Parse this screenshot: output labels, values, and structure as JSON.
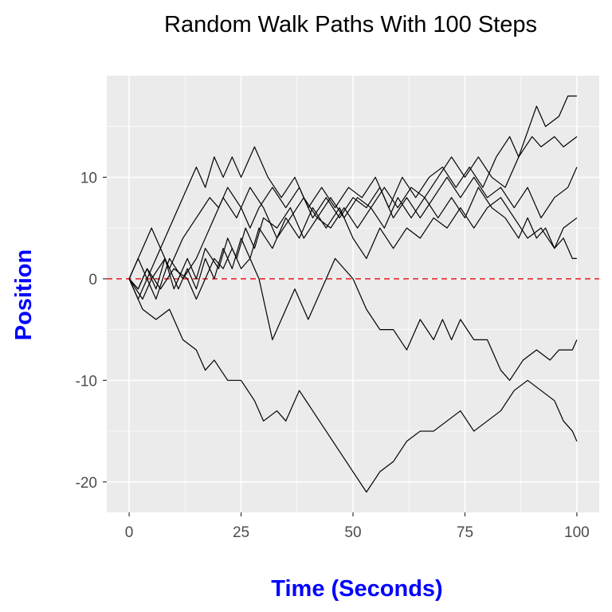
{
  "chart_data": {
    "type": "line",
    "title": "Random Walk Paths With 100 Steps",
    "xlabel": "Time (Seconds)",
    "ylabel": "Position",
    "xlim": [
      -5,
      105
    ],
    "ylim": [
      -23,
      20
    ],
    "x_ticks": [
      0,
      25,
      50,
      75,
      100
    ],
    "y_ticks": [
      -20,
      -10,
      0,
      10
    ],
    "grid": true,
    "legend": "none",
    "reference_line": {
      "y": 0,
      "style": "dashed",
      "color": "#e41a1c"
    },
    "colors": {
      "panel": "#ebebeb",
      "grid": "#ffffff",
      "line": "#000000",
      "axis_title": "#0000ff",
      "tick_label": "#4d4d4d"
    },
    "series": [
      {
        "points": [
          [
            0,
            0
          ],
          [
            3,
            3
          ],
          [
            5,
            5
          ],
          [
            7,
            3
          ],
          [
            10,
            6
          ],
          [
            15,
            11
          ],
          [
            17,
            9
          ],
          [
            19,
            12
          ],
          [
            21,
            10
          ],
          [
            23,
            12
          ],
          [
            25,
            10
          ],
          [
            28,
            13
          ],
          [
            31,
            10
          ],
          [
            34,
            8
          ],
          [
            37,
            10
          ],
          [
            40,
            7
          ],
          [
            43,
            9
          ],
          [
            46,
            7
          ],
          [
            49,
            9
          ],
          [
            52,
            8
          ],
          [
            55,
            10
          ],
          [
            58,
            7
          ],
          [
            61,
            10
          ],
          [
            64,
            8
          ],
          [
            67,
            10
          ],
          [
            70,
            11
          ],
          [
            73,
            9
          ],
          [
            76,
            11
          ],
          [
            79,
            9
          ],
          [
            82,
            12
          ],
          [
            85,
            14
          ],
          [
            87,
            12
          ],
          [
            91,
            17
          ],
          [
            93,
            15
          ],
          [
            96,
            16
          ],
          [
            98,
            18
          ],
          [
            100,
            18
          ]
        ]
      },
      {
        "points": [
          [
            0,
            0
          ],
          [
            2,
            -2
          ],
          [
            4,
            0
          ],
          [
            6,
            -2
          ],
          [
            9,
            2
          ],
          [
            12,
            0
          ],
          [
            15,
            2
          ],
          [
            18,
            5
          ],
          [
            21,
            8
          ],
          [
            24,
            6
          ],
          [
            27,
            9
          ],
          [
            30,
            7
          ],
          [
            33,
            4
          ],
          [
            36,
            6
          ],
          [
            39,
            8
          ],
          [
            42,
            6
          ],
          [
            45,
            8
          ],
          [
            48,
            6
          ],
          [
            51,
            8
          ],
          [
            54,
            7
          ],
          [
            57,
            9
          ],
          [
            60,
            7
          ],
          [
            63,
            9
          ],
          [
            66,
            8
          ],
          [
            69,
            10
          ],
          [
            72,
            12
          ],
          [
            75,
            10
          ],
          [
            78,
            12
          ],
          [
            81,
            10
          ],
          [
            84,
            9
          ],
          [
            87,
            12
          ],
          [
            90,
            14
          ],
          [
            92,
            13
          ],
          [
            95,
            14
          ],
          [
            97,
            13
          ],
          [
            100,
            14
          ]
        ]
      },
      {
        "points": [
          [
            0,
            0
          ],
          [
            2,
            2
          ],
          [
            4,
            0
          ],
          [
            7,
            3
          ],
          [
            9,
            1
          ],
          [
            12,
            4
          ],
          [
            15,
            6
          ],
          [
            18,
            8
          ],
          [
            20,
            7
          ],
          [
            22,
            9
          ],
          [
            25,
            7
          ],
          [
            27,
            5
          ],
          [
            29,
            7
          ],
          [
            32,
            9
          ],
          [
            35,
            7
          ],
          [
            38,
            9
          ],
          [
            41,
            6
          ],
          [
            44,
            8
          ],
          [
            47,
            6
          ],
          [
            50,
            8
          ],
          [
            53,
            7
          ],
          [
            56,
            9
          ],
          [
            59,
            6
          ],
          [
            62,
            8
          ],
          [
            65,
            6
          ],
          [
            68,
            8
          ],
          [
            71,
            10
          ],
          [
            74,
            8
          ],
          [
            77,
            10
          ],
          [
            80,
            8
          ],
          [
            83,
            9
          ],
          [
            86,
            7
          ],
          [
            89,
            9
          ],
          [
            92,
            6
          ],
          [
            95,
            8
          ],
          [
            98,
            9
          ],
          [
            100,
            11
          ]
        ]
      },
      {
        "points": [
          [
            0,
            0
          ],
          [
            3,
            -2
          ],
          [
            5,
            0
          ],
          [
            8,
            2
          ],
          [
            10,
            -1
          ],
          [
            13,
            2
          ],
          [
            15,
            0
          ],
          [
            17,
            3
          ],
          [
            20,
            1
          ],
          [
            22,
            4
          ],
          [
            24,
            2
          ],
          [
            26,
            5
          ],
          [
            28,
            3
          ],
          [
            30,
            6
          ],
          [
            33,
            5
          ],
          [
            36,
            7
          ],
          [
            39,
            4
          ],
          [
            42,
            6
          ],
          [
            45,
            5
          ],
          [
            48,
            7
          ],
          [
            51,
            5
          ],
          [
            54,
            7
          ],
          [
            57,
            5
          ],
          [
            60,
            8
          ],
          [
            63,
            6
          ],
          [
            66,
            8
          ],
          [
            69,
            6
          ],
          [
            72,
            8
          ],
          [
            75,
            6
          ],
          [
            78,
            9
          ],
          [
            81,
            7
          ],
          [
            84,
            6
          ],
          [
            87,
            4
          ],
          [
            89,
            6
          ],
          [
            91,
            4
          ],
          [
            93,
            5
          ],
          [
            95,
            3
          ],
          [
            97,
            4
          ],
          [
            99,
            2
          ],
          [
            100,
            2
          ]
        ]
      },
      {
        "points": [
          [
            0,
            0
          ],
          [
            2,
            -1
          ],
          [
            4,
            1
          ],
          [
            6,
            -1
          ],
          [
            8,
            2
          ],
          [
            11,
            -1
          ],
          [
            13,
            1
          ],
          [
            15,
            -1
          ],
          [
            17,
            2
          ],
          [
            19,
            0
          ],
          [
            21,
            3
          ],
          [
            23,
            1
          ],
          [
            25,
            4
          ],
          [
            27,
            2
          ],
          [
            29,
            5
          ],
          [
            32,
            3
          ],
          [
            35,
            6
          ],
          [
            38,
            4
          ],
          [
            41,
            7
          ],
          [
            44,
            5
          ],
          [
            47,
            7
          ],
          [
            50,
            4
          ],
          [
            53,
            2
          ],
          [
            56,
            5
          ],
          [
            59,
            3
          ],
          [
            62,
            5
          ],
          [
            65,
            4
          ],
          [
            68,
            6
          ],
          [
            71,
            5
          ],
          [
            74,
            7
          ],
          [
            77,
            5
          ],
          [
            80,
            7
          ],
          [
            83,
            8
          ],
          [
            86,
            6
          ],
          [
            89,
            4
          ],
          [
            92,
            5
          ],
          [
            95,
            3
          ],
          [
            97,
            5
          ],
          [
            100,
            6
          ]
        ]
      },
      {
        "points": [
          [
            0,
            0
          ],
          [
            2,
            -1
          ],
          [
            4,
            1
          ],
          [
            7,
            -1
          ],
          [
            10,
            1
          ],
          [
            13,
            0
          ],
          [
            15,
            -2
          ],
          [
            17,
            0
          ],
          [
            19,
            2
          ],
          [
            21,
            1
          ],
          [
            23,
            3
          ],
          [
            25,
            1
          ],
          [
            27,
            2
          ],
          [
            29,
            0
          ],
          [
            32,
            -6
          ],
          [
            35,
            -3
          ],
          [
            37,
            -1
          ],
          [
            40,
            -4
          ],
          [
            43,
            -1
          ],
          [
            46,
            2
          ],
          [
            48,
            1
          ],
          [
            50,
            0
          ],
          [
            53,
            -3
          ],
          [
            56,
            -5
          ],
          [
            59,
            -5
          ],
          [
            62,
            -7
          ],
          [
            65,
            -4
          ],
          [
            68,
            -6
          ],
          [
            70,
            -4
          ],
          [
            72,
            -6
          ],
          [
            74,
            -4
          ],
          [
            77,
            -6
          ],
          [
            80,
            -6
          ],
          [
            83,
            -9
          ],
          [
            85,
            -10
          ],
          [
            88,
            -8
          ],
          [
            91,
            -7
          ],
          [
            94,
            -8
          ],
          [
            96,
            -7
          ],
          [
            99,
            -7
          ],
          [
            100,
            -6
          ]
        ]
      },
      {
        "points": [
          [
            0,
            0
          ],
          [
            3,
            -3
          ],
          [
            6,
            -4
          ],
          [
            9,
            -3
          ],
          [
            12,
            -6
          ],
          [
            15,
            -7
          ],
          [
            17,
            -9
          ],
          [
            19,
            -8
          ],
          [
            22,
            -10
          ],
          [
            25,
            -10
          ],
          [
            28,
            -12
          ],
          [
            30,
            -14
          ],
          [
            33,
            -13
          ],
          [
            35,
            -14
          ],
          [
            38,
            -11
          ],
          [
            41,
            -13
          ],
          [
            44,
            -15
          ],
          [
            47,
            -17
          ],
          [
            50,
            -19
          ],
          [
            53,
            -21
          ],
          [
            56,
            -19
          ],
          [
            59,
            -18
          ],
          [
            62,
            -16
          ],
          [
            65,
            -15
          ],
          [
            68,
            -15
          ],
          [
            71,
            -14
          ],
          [
            74,
            -13
          ],
          [
            77,
            -15
          ],
          [
            80,
            -14
          ],
          [
            83,
            -13
          ],
          [
            86,
            -11
          ],
          [
            89,
            -10
          ],
          [
            92,
            -11
          ],
          [
            95,
            -12
          ],
          [
            97,
            -14
          ],
          [
            99,
            -15
          ],
          [
            100,
            -16
          ]
        ]
      }
    ]
  }
}
